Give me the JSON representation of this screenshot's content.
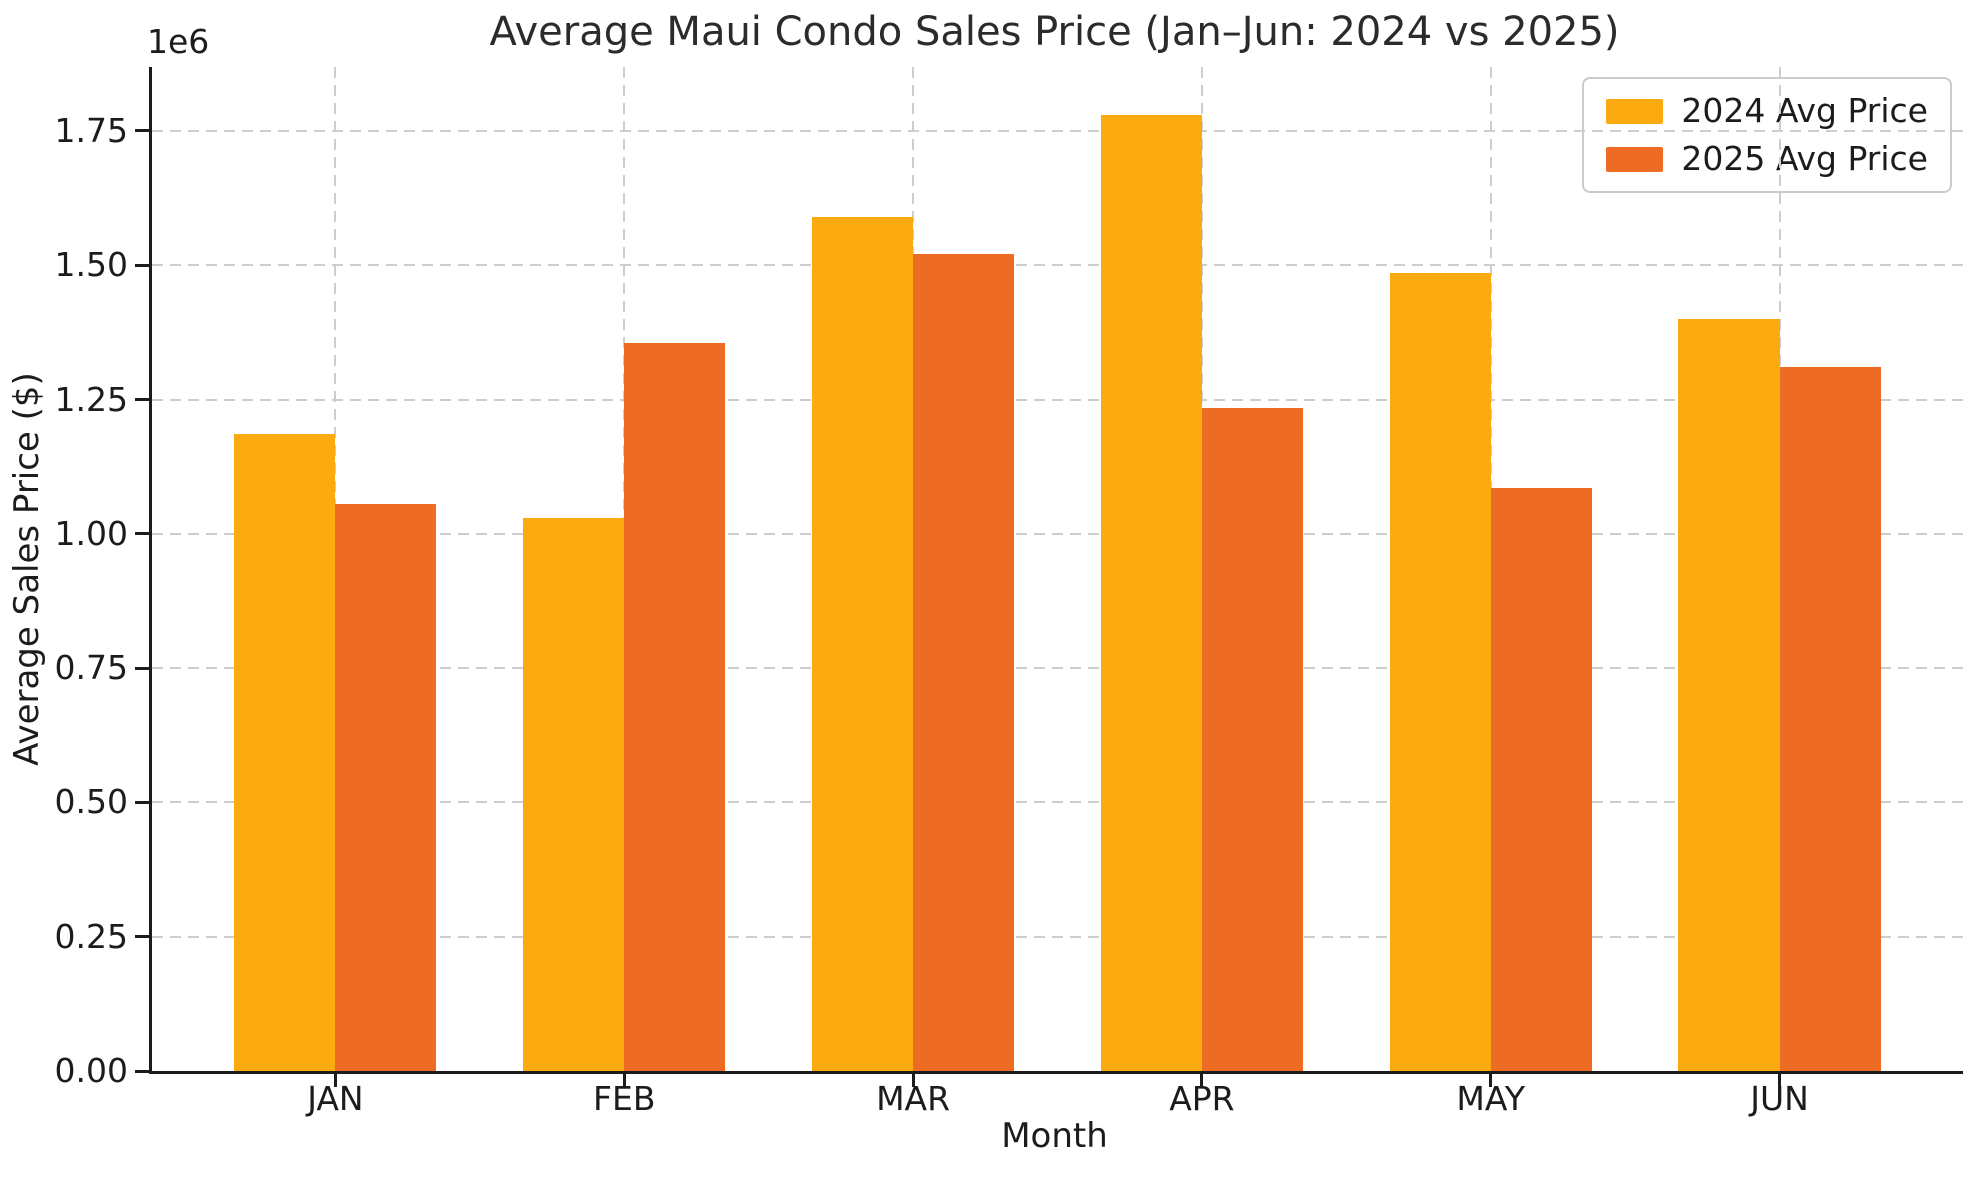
{
  "chart_data": {
    "type": "bar",
    "title": "Average Maui Condo Sales Price (Jan–Jun: 2024 vs 2025)",
    "xlabel": "Month",
    "ylabel": "Average Sales Price ($)",
    "y_offset_text": "1e6",
    "categories": [
      "JAN",
      "FEB",
      "MAR",
      "APR",
      "MAY",
      "JUN"
    ],
    "series": [
      {
        "name": "2024 Avg Price",
        "color": "#FBAB0F",
        "values": [
          1185000,
          1030000,
          1590000,
          1780000,
          1485000,
          1400000
        ]
      },
      {
        "name": "2025 Avg Price",
        "color": "#EE6B23",
        "values": [
          1055000,
          1355000,
          1520000,
          1235000,
          1085000,
          1310000
        ]
      }
    ],
    "ylim": [
      0,
      1869000
    ],
    "yticks": {
      "values": [
        0,
        250000,
        500000,
        750000,
        1000000,
        1250000,
        1500000,
        1750000
      ],
      "labels": [
        "0.00",
        "0.25",
        "0.50",
        "0.75",
        "1.00",
        "1.25",
        "1.50",
        "1.75"
      ]
    },
    "bar_width_fraction": 0.35,
    "grid": {
      "style": "dashed",
      "color": "#cdcdcd",
      "horizontal": true,
      "vertical": true
    },
    "legend": {
      "position": "upper right",
      "entries": [
        "2024 Avg Price",
        "2025 Avg Price"
      ]
    }
  }
}
